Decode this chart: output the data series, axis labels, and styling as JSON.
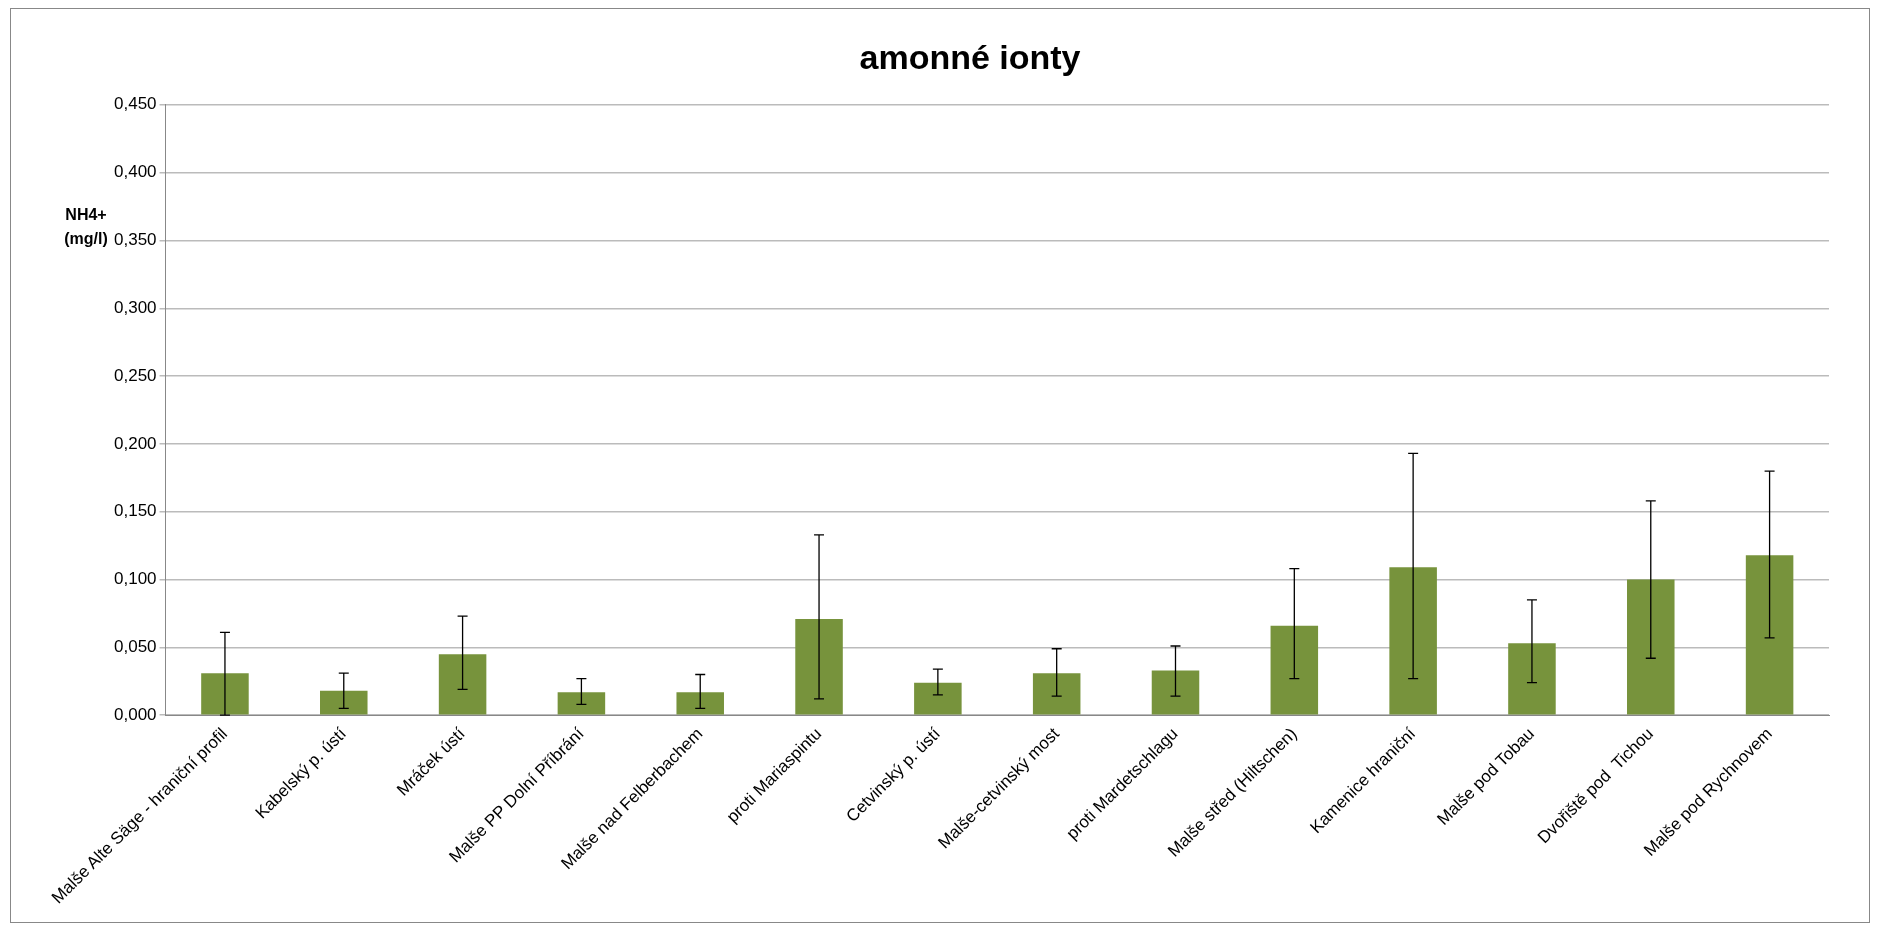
{
  "chart_data": {
    "type": "bar",
    "title": "amonné ionty",
    "ylabel": "NH4+\n(mg/l)",
    "categories": [
      "Malše Alte Säge - hraniční profil",
      "Kabelský p. ústí",
      "Mráček ústí",
      "Malše PP Dolní Příbrání",
      "Malše nad Felberbachem",
      "proti Mariaspintu",
      "Cetvinský p. ústí",
      "Malše-cetvinský most",
      "proti Mardetschlagu",
      "Malše střed (Hiltschen)",
      "Kamenice hraniční",
      "Malše pod Tobau",
      "Dvořiště pod  Tichou",
      "Malše pod Rychnovem"
    ],
    "values": [
      0.031,
      0.018,
      0.045,
      0.017,
      0.017,
      0.071,
      0.024,
      0.031,
      0.033,
      0.066,
      0.109,
      0.053,
      0.1,
      0.118
    ],
    "errors": [
      [
        0.0,
        0.061
      ],
      [
        0.005,
        0.031
      ],
      [
        0.019,
        0.073
      ],
      [
        0.008,
        0.027
      ],
      [
        0.005,
        0.03
      ],
      [
        0.012,
        0.133
      ],
      [
        0.015,
        0.034
      ],
      [
        0.014,
        0.049
      ],
      [
        0.014,
        0.051
      ],
      [
        0.027,
        0.108
      ],
      [
        0.027,
        0.193
      ],
      [
        0.024,
        0.085
      ],
      [
        0.042,
        0.158
      ],
      [
        0.057,
        0.18
      ]
    ],
    "color": "#77933c",
    "ylim": [
      0,
      0.45
    ],
    "yticks": [
      {
        "value": 0,
        "label": "0,000"
      },
      {
        "value": 0.05,
        "label": "0,050"
      },
      {
        "value": 0.1,
        "label": "0,100"
      },
      {
        "value": 0.15,
        "label": "0,150"
      },
      {
        "value": 0.2,
        "label": "0,200"
      },
      {
        "value": 0.25,
        "label": "0,250"
      },
      {
        "value": 0.3,
        "label": "0,300"
      },
      {
        "value": 0.35,
        "label": "0,350"
      },
      {
        "value": 0.4,
        "label": "0,400"
      },
      {
        "value": 0.45,
        "label": "0,450"
      }
    ],
    "grid": "y",
    "legend": false
  }
}
